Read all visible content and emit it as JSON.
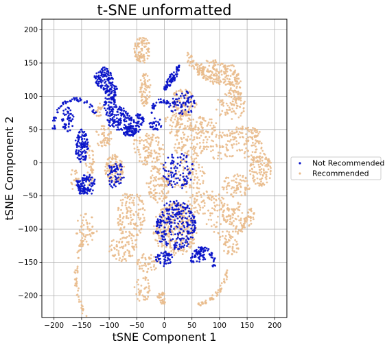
{
  "chart_data": {
    "type": "scatter",
    "title": "t-SNE unformatted",
    "xlabel": "tSNE Component 1",
    "ylabel": "tSNE Component 2",
    "xlim": [
      -222,
      222
    ],
    "ylim": [
      -233,
      216
    ],
    "xticks": [
      -200,
      -150,
      -100,
      -50,
      0,
      50,
      100,
      150,
      200
    ],
    "yticks": [
      -200,
      -150,
      -100,
      -50,
      0,
      50,
      100,
      150,
      200
    ],
    "grid": true,
    "legend_position": "right-center",
    "series": [
      {
        "name": "Not Recommended",
        "color": "#0a14c8",
        "clusters": [
          {
            "shape": "poly",
            "pts": [
              [
                -130,
                130
              ],
              [
                -110,
                145
              ],
              [
                -100,
                140
              ],
              [
                -85,
                110
              ],
              [
                -90,
                90
              ],
              [
                -110,
                110
              ],
              [
                -125,
                118
              ]
            ],
            "n": 160
          },
          {
            "shape": "poly",
            "pts": [
              [
                -105,
                115
              ],
              [
                -95,
                100
              ],
              [
                -50,
                62
              ],
              [
                -40,
                48
              ],
              [
                -70,
                40
              ],
              [
                -100,
                55
              ],
              [
                -110,
                85
              ]
            ],
            "n": 220
          },
          {
            "shape": "poly",
            "pts": [
              [
                -2,
                112
              ],
              [
                10,
                132
              ],
              [
                30,
                152
              ],
              [
                22,
                125
              ],
              [
                0,
                108
              ]
            ],
            "n": 80
          },
          {
            "shape": "ellipse",
            "c": [
              -150,
              25
            ],
            "rx": 12,
            "ry": 25,
            "n": 110
          },
          {
            "shape": "poly",
            "pts": [
              [
                -160,
                -28
              ],
              [
                -140,
                -15
              ],
              [
                -125,
                -25
              ],
              [
                -130,
                -47
              ],
              [
                -155,
                -47
              ]
            ],
            "n": 110
          },
          {
            "shape": "poly",
            "pts": [
              [
                -100,
                -2
              ],
              [
                -78,
                -2
              ],
              [
                -70,
                -28
              ],
              [
                -90,
                -40
              ],
              [
                -105,
                -30
              ]
            ],
            "n": 60
          },
          {
            "shape": "ellipse",
            "c": [
              -60,
              48
            ],
            "rx": 10,
            "ry": 8,
            "n": 40
          },
          {
            "shape": "ellipse",
            "c": [
              -45,
              65
            ],
            "rx": 8,
            "ry": 10,
            "n": 30
          },
          {
            "shape": "ellipse",
            "c": [
              -15,
              58
            ],
            "rx": 12,
            "ry": 10,
            "n": 30
          },
          {
            "shape": "ellipse",
            "c": [
              35,
              90
            ],
            "rx": 22,
            "ry": 18,
            "n": 70
          },
          {
            "shape": "ellipse",
            "c": [
              25,
              -12
            ],
            "rx": 28,
            "ry": 28,
            "n": 90
          },
          {
            "shape": "ellipse",
            "c": [
              20,
              -95
            ],
            "rx": 38,
            "ry": 38,
            "n": 260
          },
          {
            "shape": "ellipse",
            "c": [
              0,
              -145
            ],
            "rx": 16,
            "ry": 12,
            "n": 50
          },
          {
            "shape": "ellipse",
            "c": [
              65,
              -138
            ],
            "rx": 13,
            "ry": 12,
            "n": 40
          },
          {
            "shape": "ellipse",
            "c": [
              -175,
              65
            ],
            "rx": 12,
            "ry": 18,
            "n": 50
          },
          {
            "shape": "arc",
            "c": [
              -160,
              55
            ],
            "r": 40,
            "a": [
              30,
              190
            ],
            "n": 60
          },
          {
            "shape": "arc",
            "c": [
              70,
              -150
            ],
            "r": 20,
            "a": [
              -20,
              180
            ],
            "n": 50
          },
          {
            "shape": "arc",
            "c": [
              -5,
              75
            ],
            "r": 18,
            "a": [
              0,
              180
            ],
            "n": 40
          }
        ]
      },
      {
        "name": "Recommended",
        "color": "#e9bb8c",
        "clusters": [
          {
            "shape": "ellipse",
            "c": [
              -40,
              170
            ],
            "rx": 15,
            "ry": 20,
            "n": 90
          },
          {
            "shape": "ellipse",
            "c": [
              -35,
              110
            ],
            "rx": 10,
            "ry": 25,
            "n": 70
          },
          {
            "shape": "poly",
            "pts": [
              [
                40,
                170
              ],
              [
                60,
                150
              ],
              [
                100,
                130
              ],
              [
                105,
                115
              ],
              [
                80,
                120
              ],
              [
                40,
                150
              ]
            ],
            "n": 80
          },
          {
            "shape": "ellipse",
            "c": [
              85,
              140
            ],
            "rx": 30,
            "ry": 15,
            "n": 90
          },
          {
            "shape": "ellipse",
            "c": [
              120,
              130
            ],
            "rx": 15,
            "ry": 18,
            "n": 50
          },
          {
            "shape": "ellipse",
            "c": [
              128,
              110
            ],
            "rx": 12,
            "ry": 28,
            "n": 70
          },
          {
            "shape": "ellipse",
            "c": [
              120,
              85
            ],
            "rx": 28,
            "ry": 20,
            "n": 70
          },
          {
            "shape": "ellipse",
            "c": [
              35,
              90
            ],
            "rx": 25,
            "ry": 22,
            "n": 90
          },
          {
            "shape": "ellipse",
            "c": [
              25,
              60
            ],
            "rx": 25,
            "ry": 20,
            "n": 80
          },
          {
            "shape": "ellipse",
            "c": [
              70,
              55
            ],
            "rx": 25,
            "ry": 15,
            "n": 60
          },
          {
            "shape": "ellipse",
            "c": [
              145,
              45
            ],
            "rx": 30,
            "ry": 10,
            "n": 60
          },
          {
            "shape": "ellipse",
            "c": [
              160,
              20
            ],
            "rx": 20,
            "ry": 20,
            "n": 50
          },
          {
            "shape": "ellipse",
            "c": [
              175,
              -10
            ],
            "rx": 20,
            "ry": 25,
            "n": 110
          },
          {
            "shape": "ellipse",
            "c": [
              130,
              -35
            ],
            "rx": 25,
            "ry": 18,
            "n": 70
          },
          {
            "shape": "ellipse",
            "c": [
              135,
              -80
            ],
            "rx": 30,
            "ry": 20,
            "n": 90
          },
          {
            "shape": "ellipse",
            "c": [
              120,
              -125
            ],
            "rx": 15,
            "ry": 15,
            "n": 40
          },
          {
            "shape": "ellipse",
            "c": [
              80,
              25
            ],
            "rx": 65,
            "ry": 22,
            "n": 160
          },
          {
            "shape": "ellipse",
            "c": [
              40,
              -20
            ],
            "rx": 35,
            "ry": 25,
            "n": 90
          },
          {
            "shape": "ellipse",
            "c": [
              75,
              -60
            ],
            "rx": 35,
            "ry": 18,
            "n": 80
          },
          {
            "shape": "ellipse",
            "c": [
              20,
              -100
            ],
            "rx": 40,
            "ry": 40,
            "n": 300
          },
          {
            "shape": "ellipse",
            "c": [
              -10,
              -30
            ],
            "rx": 22,
            "ry": 30,
            "n": 120
          },
          {
            "shape": "ellipse",
            "c": [
              -30,
              20
            ],
            "rx": 30,
            "ry": 25,
            "n": 110
          },
          {
            "shape": "ellipse",
            "c": [
              -90,
              -10
            ],
            "rx": 18,
            "ry": 22,
            "n": 110
          },
          {
            "shape": "ellipse",
            "c": [
              -110,
              40
            ],
            "rx": 15,
            "ry": 18,
            "n": 50
          },
          {
            "shape": "ellipse",
            "c": [
              -60,
              -80
            ],
            "rx": 25,
            "ry": 40,
            "n": 140
          },
          {
            "shape": "ellipse",
            "c": [
              -75,
              -130
            ],
            "rx": 25,
            "ry": 20,
            "n": 70
          },
          {
            "shape": "ellipse",
            "c": [
              -30,
              -150
            ],
            "rx": 20,
            "ry": 15,
            "n": 50
          },
          {
            "shape": "ellipse",
            "c": [
              -40,
              -190
            ],
            "rx": 15,
            "ry": 20,
            "n": 40
          },
          {
            "shape": "ellipse",
            "c": [
              -140,
              -100
            ],
            "rx": 20,
            "ry": 25,
            "n": 50
          },
          {
            "shape": "arc",
            "c": [
              -40,
              -170
            ],
            "r": 120,
            "a": [
              150,
              250
            ],
            "n": 80
          },
          {
            "shape": "arc",
            "c": [
              50,
              -150
            ],
            "r": 65,
            "a": [
              -80,
              -10
            ],
            "n": 60
          },
          {
            "shape": "ellipse",
            "c": [
              -5,
              -205
            ],
            "rx": 8,
            "ry": 10,
            "n": 30
          },
          {
            "shape": "ellipse",
            "c": [
              110,
              -90
            ],
            "rx": 35,
            "ry": 30,
            "n": 70
          },
          {
            "shape": "ellipse",
            "c": [
              -135,
              -5
            ],
            "rx": 8,
            "ry": 35,
            "n": 40
          },
          {
            "shape": "ellipse",
            "c": [
              -120,
              80
            ],
            "rx": 10,
            "ry": 10,
            "n": 20
          },
          {
            "shape": "ellipse",
            "c": [
              -165,
              -25
            ],
            "rx": 10,
            "ry": 15,
            "n": 20
          }
        ]
      }
    ]
  }
}
